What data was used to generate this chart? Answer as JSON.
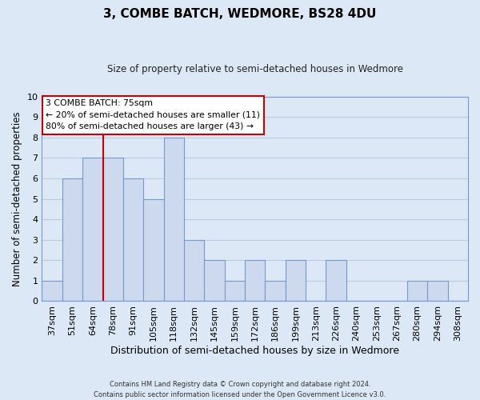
{
  "title": "3, COMBE BATCH, WEDMORE, BS28 4DU",
  "subtitle": "Size of property relative to semi-detached houses in Wedmore",
  "xlabel": "Distribution of semi-detached houses by size in Wedmore",
  "ylabel": "Number of semi-detached properties",
  "footer_line1": "Contains HM Land Registry data © Crown copyright and database right 2024.",
  "footer_line2": "Contains public sector information licensed under the Open Government Licence v3.0.",
  "bin_labels": [
    "37sqm",
    "51sqm",
    "64sqm",
    "78sqm",
    "91sqm",
    "105sqm",
    "118sqm",
    "132sqm",
    "145sqm",
    "159sqm",
    "172sqm",
    "186sqm",
    "199sqm",
    "213sqm",
    "226sqm",
    "240sqm",
    "253sqm",
    "267sqm",
    "280sqm",
    "294sqm",
    "308sqm"
  ],
  "bar_values": [
    1,
    6,
    7,
    7,
    6,
    5,
    8,
    3,
    2,
    1,
    2,
    1,
    2,
    0,
    2,
    0,
    0,
    0,
    1,
    1,
    0
  ],
  "bar_color": "#ccd9ee",
  "bar_edge_color": "#7799cc",
  "vline_x_index": 3,
  "vline_color": "#cc0000",
  "annotation_title": "3 COMBE BATCH: 75sqm",
  "annotation_line1": "← 20% of semi-detached houses are smaller (11)",
  "annotation_line2": "80% of semi-detached houses are larger (43) →",
  "annotation_box_facecolor": "#ffffff",
  "annotation_box_edgecolor": "#cc0000",
  "ylim": [
    0,
    10
  ],
  "yticks": [
    0,
    1,
    2,
    3,
    4,
    5,
    6,
    7,
    8,
    9,
    10
  ],
  "grid_color": "#b8cce0",
  "background_color": "#dce8f5",
  "plot_bg_color": "#dce8f5"
}
